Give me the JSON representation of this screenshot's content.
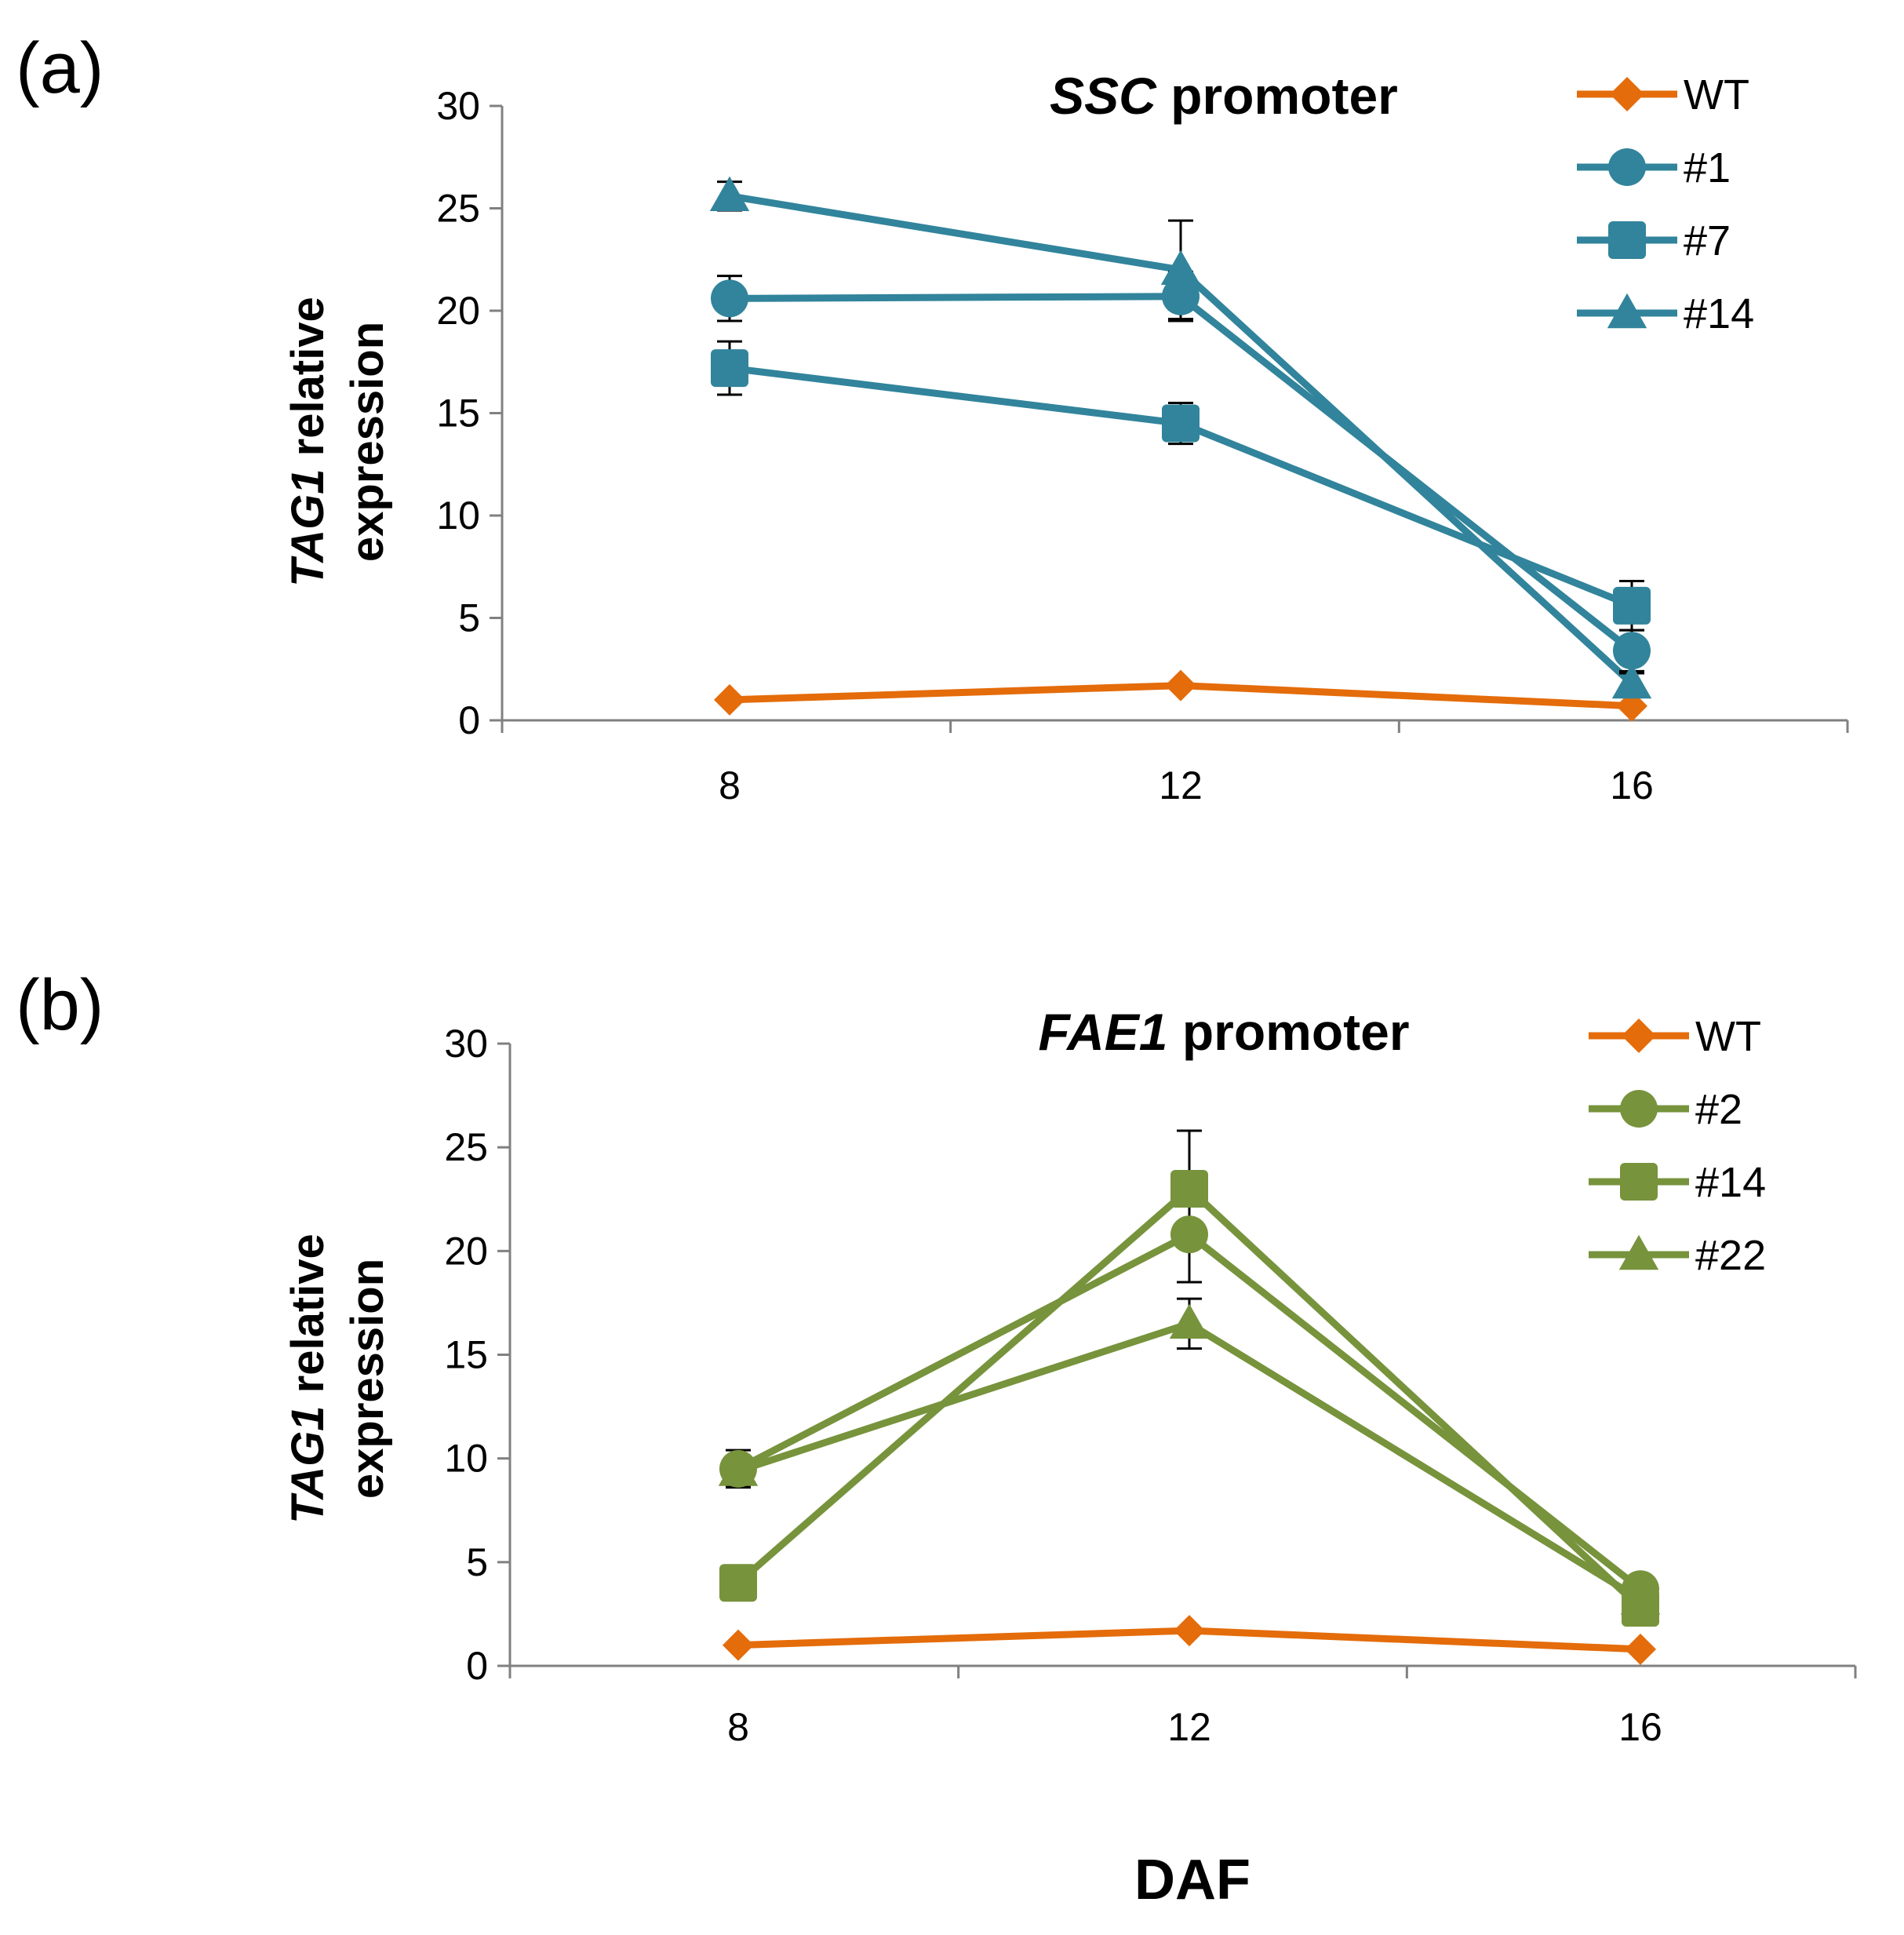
{
  "x_axis_label": "DAF",
  "chart_data": [
    {
      "type": "line",
      "panel_label": "(a)",
      "title_italic": "SSC",
      "title_rest": " promoter",
      "ylabel_line1_italic": "TAG1",
      "ylabel_line1_rest": " relative",
      "ylabel_line2": "expression",
      "categories": [
        "8",
        "12",
        "16"
      ],
      "ylim": [
        0,
        30
      ],
      "yticks": [
        "0",
        "5",
        "10",
        "15",
        "20",
        "25",
        "30"
      ],
      "series": [
        {
          "name": "WT",
          "marker": "diamond",
          "color": "#E46C0A",
          "values": [
            1.0,
            1.7,
            0.7
          ],
          "errors": [
            0,
            0,
            0
          ]
        },
        {
          "name": "#1",
          "marker": "circle",
          "color": "#31849B",
          "values": [
            20.6,
            20.7,
            3.4
          ],
          "errors": [
            1.1,
            1.2,
            1.0
          ]
        },
        {
          "name": "#7",
          "marker": "square",
          "color": "#31849B",
          "values": [
            17.2,
            14.5,
            5.6
          ],
          "errors": [
            1.3,
            1.0,
            1.2
          ]
        },
        {
          "name": "#14",
          "marker": "triangle",
          "color": "#31849B",
          "values": [
            25.6,
            22.0,
            1.8
          ],
          "errors": [
            0.7,
            2.4,
            0.5
          ]
        }
      ],
      "legend_position": "top-right"
    },
    {
      "type": "line",
      "panel_label": "(b)",
      "title_italic": "FAE1",
      "title_rest": " promoter",
      "ylabel_line1_italic": "TAG1",
      "ylabel_line1_rest": " relative",
      "ylabel_line2": "expression",
      "categories": [
        "8",
        "12",
        "16"
      ],
      "ylim": [
        0,
        30
      ],
      "yticks": [
        "0",
        "5",
        "10",
        "15",
        "20",
        "25",
        "30"
      ],
      "series": [
        {
          "name": "WT",
          "marker": "diamond",
          "color": "#E46C0A",
          "values": [
            1.0,
            1.7,
            0.8
          ],
          "errors": [
            0,
            0,
            0
          ]
        },
        {
          "name": "#2",
          "marker": "circle",
          "color": "#77933C",
          "values": [
            9.5,
            20.8,
            3.7
          ],
          "errors": [
            0.9,
            2.3,
            0.6
          ]
        },
        {
          "name": "#14",
          "marker": "square",
          "color": "#77933C",
          "values": [
            4.0,
            23.0,
            2.8
          ],
          "errors": [
            0.4,
            2.8,
            0.5
          ]
        },
        {
          "name": "#22",
          "marker": "triangle",
          "color": "#77933C",
          "values": [
            9.4,
            16.5,
            3.2
          ],
          "errors": [
            0.7,
            1.2,
            0.5
          ]
        }
      ],
      "legend_position": "top-right"
    }
  ]
}
